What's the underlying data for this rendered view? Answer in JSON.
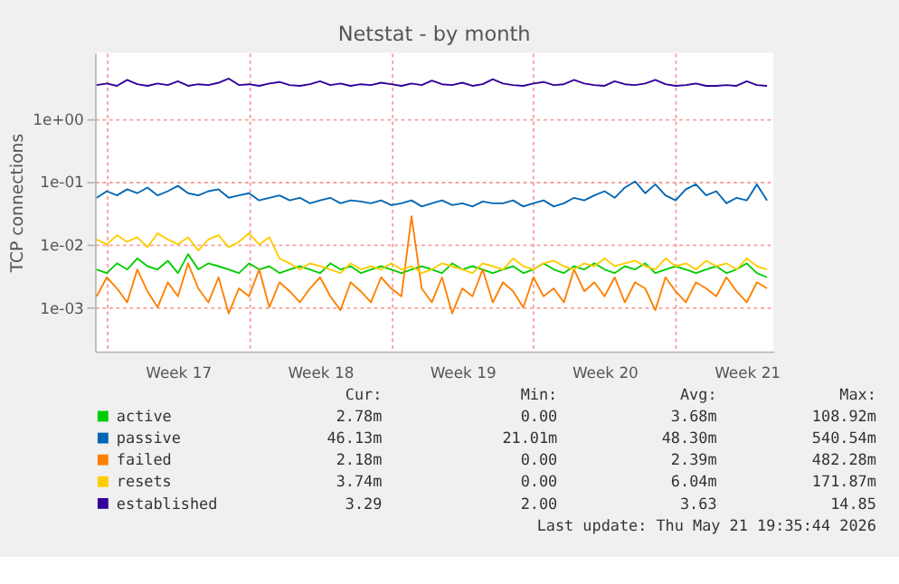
{
  "chart_data": {
    "type": "line",
    "title": "Netstat - by month",
    "ylabel": "TCP connections",
    "log": true,
    "grid": true,
    "legend": "bottom",
    "xlim": [
      "2026-04-18T10:00",
      "2026-05-21T19:35"
    ],
    "xticks": [
      {
        "value": "2026-04-19T00:00",
        "label": null
      },
      {
        "value": "2026-04-22T12:00",
        "label": "Week 17"
      },
      {
        "value": "2026-04-26T00:00",
        "label": null
      },
      {
        "value": "2026-04-29T12:00",
        "label": "Week 18"
      },
      {
        "value": "2026-05-03T00:00",
        "label": null
      },
      {
        "value": "2026-05-06T12:00",
        "label": "Week 19"
      },
      {
        "value": "2026-05-10T00:00",
        "label": null
      },
      {
        "value": "2026-05-13T12:00",
        "label": "Week 20"
      },
      {
        "value": "2026-05-17T00:00",
        "label": null
      },
      {
        "value": "2026-05-20T12:00",
        "label": "Week 21"
      }
    ],
    "ylim": [
      0.0002,
      11
    ],
    "yticks": [
      {
        "value": 0.001,
        "label": "1e-03"
      },
      {
        "value": 0.01,
        "label": "1e-02"
      },
      {
        "value": 0.1,
        "label": "1e-01"
      },
      {
        "value": 1,
        "label": "1e+00"
      }
    ],
    "x": [
      "2026-04-18T12:00",
      "2026-04-19T00:00",
      "2026-04-19T12:00",
      "2026-04-20T00:00",
      "2026-04-20T12:00",
      "2026-04-21T00:00",
      "2026-04-21T12:00",
      "2026-04-22T00:00",
      "2026-04-22T12:00",
      "2026-04-23T00:00",
      "2026-04-23T12:00",
      "2026-04-24T00:00",
      "2026-04-24T12:00",
      "2026-04-25T00:00",
      "2026-04-25T12:00",
      "2026-04-26T00:00",
      "2026-04-26T12:00",
      "2026-04-27T00:00",
      "2026-04-27T12:00",
      "2026-04-28T00:00",
      "2026-04-28T12:00",
      "2026-04-29T00:00",
      "2026-04-29T12:00",
      "2026-04-30T00:00",
      "2026-04-30T12:00",
      "2026-05-01T00:00",
      "2026-05-01T12:00",
      "2026-05-02T00:00",
      "2026-05-02T12:00",
      "2026-05-03T00:00",
      "2026-05-03T12:00",
      "2026-05-04T00:00",
      "2026-05-04T12:00",
      "2026-05-05T00:00",
      "2026-05-05T12:00",
      "2026-05-06T00:00",
      "2026-05-06T12:00",
      "2026-05-07T00:00",
      "2026-05-07T12:00",
      "2026-05-08T00:00",
      "2026-05-08T12:00",
      "2026-05-09T00:00",
      "2026-05-09T12:00",
      "2026-05-10T00:00",
      "2026-05-10T12:00",
      "2026-05-11T00:00",
      "2026-05-11T12:00",
      "2026-05-12T00:00",
      "2026-05-12T12:00",
      "2026-05-13T00:00",
      "2026-05-13T12:00",
      "2026-05-14T00:00",
      "2026-05-14T12:00",
      "2026-05-15T00:00",
      "2026-05-15T12:00",
      "2026-05-16T00:00",
      "2026-05-16T12:00",
      "2026-05-17T00:00",
      "2026-05-17T12:00",
      "2026-05-18T00:00",
      "2026-05-18T12:00",
      "2026-05-19T00:00",
      "2026-05-19T12:00",
      "2026-05-20T00:00",
      "2026-05-20T12:00",
      "2026-05-21T00:00",
      "2026-05-21T12:00"
    ],
    "series": [
      {
        "name": "active",
        "color": "#00cc00",
        "values": [
          0.004,
          0.0035,
          0.005,
          0.004,
          0.006,
          0.0045,
          0.004,
          0.0055,
          0.0035,
          0.007,
          0.004,
          0.005,
          0.0045,
          0.004,
          0.0035,
          0.005,
          0.004,
          0.0045,
          0.0035,
          0.004,
          0.0045,
          0.004,
          0.0035,
          0.005,
          0.004,
          0.0045,
          0.0035,
          0.004,
          0.0045,
          0.004,
          0.0035,
          0.004,
          0.0045,
          0.004,
          0.0035,
          0.005,
          0.004,
          0.0045,
          0.004,
          0.0035,
          0.004,
          0.0045,
          0.0035,
          0.004,
          0.005,
          0.004,
          0.0035,
          0.0045,
          0.004,
          0.005,
          0.004,
          0.0035,
          0.0045,
          0.004,
          0.005,
          0.0035,
          0.004,
          0.0045,
          0.004,
          0.0035,
          0.004,
          0.0045,
          0.0035,
          0.004,
          0.005,
          0.0035,
          0.003
        ]
      },
      {
        "name": "passive",
        "color": "#0066b3",
        "values": [
          0.055,
          0.07,
          0.06,
          0.075,
          0.065,
          0.08,
          0.06,
          0.07,
          0.085,
          0.065,
          0.06,
          0.07,
          0.075,
          0.055,
          0.06,
          0.065,
          0.05,
          0.055,
          0.06,
          0.05,
          0.055,
          0.045,
          0.05,
          0.055,
          0.045,
          0.05,
          0.048,
          0.045,
          0.05,
          0.042,
          0.045,
          0.05,
          0.04,
          0.045,
          0.05,
          0.042,
          0.045,
          0.04,
          0.048,
          0.045,
          0.045,
          0.05,
          0.04,
          0.045,
          0.05,
          0.04,
          0.045,
          0.055,
          0.05,
          0.06,
          0.07,
          0.055,
          0.08,
          0.1,
          0.065,
          0.09,
          0.06,
          0.05,
          0.075,
          0.09,
          0.06,
          0.07,
          0.045,
          0.055,
          0.05,
          0.09,
          0.05
        ]
      },
      {
        "name": "failed",
        "color": "#ff8000",
        "values": [
          0.0015,
          0.003,
          0.002,
          0.0012,
          0.004,
          0.0018,
          0.001,
          0.0025,
          0.0015,
          0.005,
          0.002,
          0.0012,
          0.003,
          0.0008,
          0.002,
          0.0015,
          0.004,
          0.001,
          0.0025,
          0.0018,
          0.0012,
          0.002,
          0.003,
          0.0015,
          0.0009,
          0.0025,
          0.0018,
          0.0012,
          0.003,
          0.002,
          0.0015,
          0.028,
          0.002,
          0.0012,
          0.003,
          0.0008,
          0.002,
          0.0015,
          0.004,
          0.0012,
          0.0025,
          0.0018,
          0.001,
          0.003,
          0.0015,
          0.002,
          0.0012,
          0.004,
          0.0018,
          0.0025,
          0.0015,
          0.003,
          0.0012,
          0.0025,
          0.002,
          0.0009,
          0.003,
          0.0018,
          0.0012,
          0.0025,
          0.002,
          0.0015,
          0.003,
          0.0018,
          0.0012,
          0.0025,
          0.002
        ]
      },
      {
        "name": "resets",
        "color": "#ffcc00",
        "values": [
          0.012,
          0.01,
          0.014,
          0.011,
          0.013,
          0.009,
          0.015,
          0.012,
          0.01,
          0.013,
          0.008,
          0.012,
          0.014,
          0.009,
          0.011,
          0.015,
          0.01,
          0.013,
          0.006,
          0.005,
          0.004,
          0.005,
          0.0045,
          0.004,
          0.0035,
          0.005,
          0.004,
          0.0045,
          0.004,
          0.005,
          0.004,
          0.0045,
          0.0035,
          0.004,
          0.005,
          0.0045,
          0.004,
          0.0035,
          0.005,
          0.0045,
          0.004,
          0.006,
          0.0045,
          0.004,
          0.005,
          0.0055,
          0.0045,
          0.004,
          0.005,
          0.0045,
          0.006,
          0.0045,
          0.005,
          0.0055,
          0.0045,
          0.004,
          0.006,
          0.0045,
          0.005,
          0.004,
          0.0055,
          0.0045,
          0.005,
          0.004,
          0.006,
          0.0045,
          0.004
        ]
      },
      {
        "name": "established",
        "color": "#330099",
        "values": [
          3.4,
          3.6,
          3.3,
          4.1,
          3.5,
          3.3,
          3.6,
          3.4,
          3.9,
          3.3,
          3.5,
          3.4,
          3.7,
          4.3,
          3.4,
          3.5,
          3.3,
          3.6,
          3.8,
          3.4,
          3.3,
          3.5,
          3.9,
          3.4,
          3.6,
          3.3,
          3.5,
          3.4,
          3.7,
          3.5,
          3.3,
          3.6,
          3.4,
          4.0,
          3.5,
          3.4,
          3.7,
          3.3,
          3.5,
          4.2,
          3.6,
          3.4,
          3.3,
          3.6,
          3.8,
          3.4,
          3.5,
          4.1,
          3.6,
          3.4,
          3.3,
          3.9,
          3.5,
          3.4,
          3.6,
          4.1,
          3.5,
          3.3,
          3.4,
          3.6,
          3.3,
          3.3,
          3.4,
          3.3,
          3.9,
          3.4,
          3.3
        ]
      }
    ],
    "annotations": [
      "Cur:",
      "Min:",
      "Avg:",
      "Max:",
      "2.78m",
      "0.00",
      "3.68m",
      "108.92m",
      "46.13m",
      "21.01m",
      "48.30m",
      "540.54m",
      "2.18m",
      "0.00",
      "2.39m",
      "482.28m",
      "3.74m",
      "0.00",
      "6.04m",
      "171.87m",
      "3.29",
      "2.00",
      "3.63",
      "14.85",
      "Last update: Thu May 21 19:35:44 2026"
    ]
  }
}
